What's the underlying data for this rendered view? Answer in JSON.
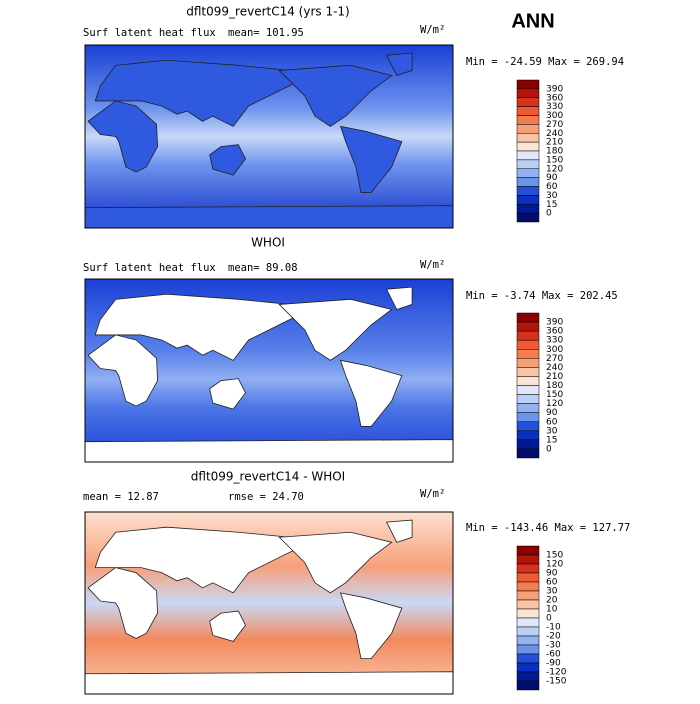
{
  "season": "ANN",
  "panels": [
    {
      "title": "dflt099_revertC14 (yrs 1-1)",
      "left": "Surf latent heat flux",
      "stat": "mean= 101.95",
      "units": "W/m²",
      "minmax": "Min = -24.59 Max = 269.94",
      "levels": [
        390,
        360,
        330,
        300,
        270,
        240,
        210,
        180,
        150,
        120,
        90,
        60,
        30,
        15,
        0
      ]
    },
    {
      "title": "WHOI",
      "left": "Surf latent heat flux",
      "stat": "mean=  89.08",
      "units": "W/m²",
      "minmax": "Min =  -3.74 Max = 202.45",
      "levels": [
        390,
        360,
        330,
        300,
        270,
        240,
        210,
        180,
        150,
        120,
        90,
        60,
        30,
        15,
        0
      ]
    },
    {
      "title": "dflt099_revertC14 - WHOI",
      "left": "mean =  12.87",
      "stat": "rmse =  24.70",
      "units": "W/m²",
      "minmax": "Min = -143.46 Max = 127.77",
      "levels": [
        150,
        120,
        90,
        60,
        30,
        20,
        10,
        0,
        -10,
        -20,
        -30,
        -60,
        -90,
        -120,
        -150
      ]
    }
  ]
}
